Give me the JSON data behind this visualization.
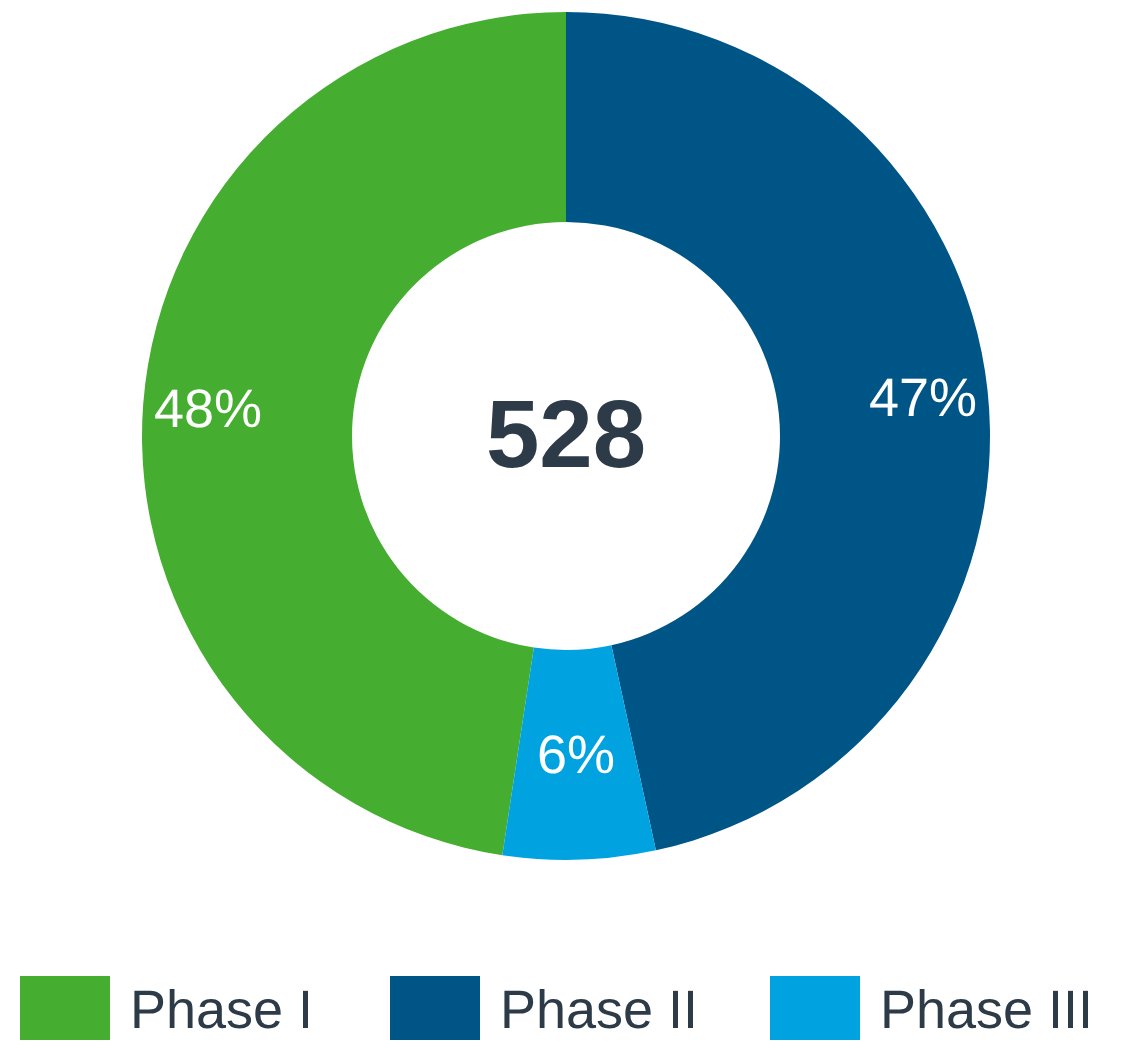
{
  "chart_data": {
    "type": "donut",
    "categories": [
      "Phase I",
      "Phase II",
      "Phase III"
    ],
    "values": [
      47.6,
      46.6,
      5.8
    ],
    "value_labels": [
      "48%",
      "47%",
      "6%"
    ],
    "colors": [
      "#45ad2f",
      "#005587",
      "#00a3e0"
    ],
    "annotations": [
      "528"
    ],
    "legend": "bottom"
  }
}
